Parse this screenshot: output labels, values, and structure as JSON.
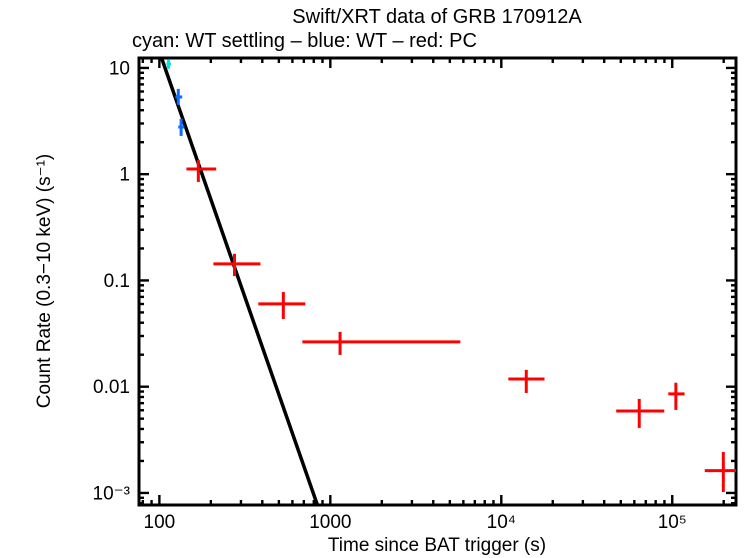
{
  "title": "Swift/XRT data of GRB 170912A",
  "subtitle": "cyan: WT settling – blue: WT – red: PC",
  "chart_data": {
    "type": "scatter",
    "title": "Swift/XRT data of GRB 170912A",
    "subtitle": "cyan: WT settling – blue: WT – red: PC",
    "xlabel": "Time since BAT trigger (s)",
    "ylabel": "Count Rate (0.3−10 keV) (s⁻¹)",
    "xscale": "log",
    "yscale": "log",
    "xlim": [
      76,
      236000
    ],
    "ylim": [
      0.00077,
      12.4
    ],
    "grid": false,
    "legend_position": "subtitle-line",
    "x_ticks": [
      {
        "value": 100,
        "label": "100"
      },
      {
        "value": 1000,
        "label": "1000"
      },
      {
        "value": 10000,
        "label": "10⁴"
      },
      {
        "value": 100000,
        "label": "10⁵"
      }
    ],
    "y_ticks": [
      {
        "value": 10,
        "label": "10"
      },
      {
        "value": 1,
        "label": "1"
      },
      {
        "value": 0.1,
        "label": "0.1"
      },
      {
        "value": 0.01,
        "label": "0.01"
      },
      {
        "value": 0.001,
        "label": "10⁻³"
      }
    ],
    "series": [
      {
        "name": "WT settling",
        "color": "#00e6e6",
        "points": [
          {
            "x": 113,
            "x_lo": 110,
            "x_hi": 117,
            "y": 10.9,
            "y_lo": 9.8,
            "y_hi": 11.9
          }
        ]
      },
      {
        "name": "WT",
        "color": "#0d6eff",
        "points": [
          {
            "x": 129,
            "x_lo": 124,
            "x_hi": 136,
            "y": 5.33,
            "y_lo": 4.49,
            "y_hi": 6.35
          },
          {
            "x": 134,
            "x_lo": 129,
            "x_hi": 140,
            "y": 2.78,
            "y_lo": 2.29,
            "y_hi": 3.31
          }
        ]
      },
      {
        "name": "PC",
        "color": "#ff0000",
        "points": [
          {
            "x": 169,
            "x_lo": 144,
            "x_hi": 215,
            "y": 1.12,
            "y_lo": 0.845,
            "y_hi": 1.36
          },
          {
            "x": 275,
            "x_lo": 207,
            "x_hi": 390,
            "y": 0.143,
            "y_lo": 0.11,
            "y_hi": 0.178
          },
          {
            "x": 531,
            "x_lo": 379,
            "x_hi": 714,
            "y": 0.0601,
            "y_lo": 0.0434,
            "y_hi": 0.078
          },
          {
            "x": 1140,
            "x_lo": 686,
            "x_hi": 5760,
            "y": 0.0264,
            "y_lo": 0.0199,
            "y_hi": 0.0328
          },
          {
            "x": 14000,
            "x_lo": 11000,
            "x_hi": 17900,
            "y": 0.0118,
            "y_lo": 0.00873,
            "y_hi": 0.0144
          },
          {
            "x": 64100,
            "x_lo": 47000,
            "x_hi": 89800,
            "y": 0.00591,
            "y_lo": 0.00409,
            "y_hi": 0.00767
          },
          {
            "x": 105000,
            "x_lo": 94800,
            "x_hi": 118000,
            "y": 0.00855,
            "y_lo": 0.00604,
            "y_hi": 0.0109
          },
          {
            "x": 199000,
            "x_lo": 155000,
            "x_hi": 245000,
            "y": 0.00162,
            "y_lo": 0.00102,
            "y_hi": 0.00243
          }
        ]
      }
    ],
    "model_line": {
      "name": "power-law fit",
      "color": "#000000",
      "x": [
        103,
        840
      ],
      "y": [
        12.4,
        0.00077
      ]
    }
  }
}
